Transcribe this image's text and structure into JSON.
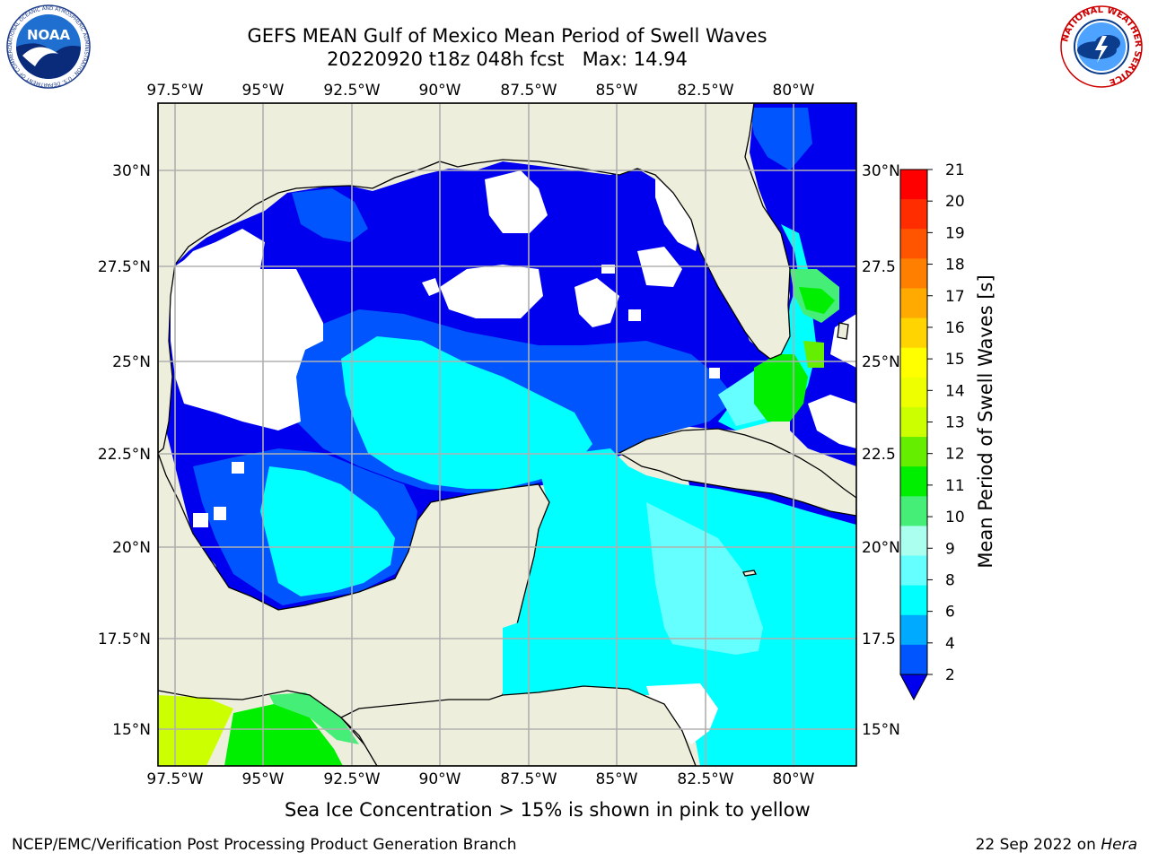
{
  "header": {
    "title_line1": "GEFS MEAN Gulf of Mexico Mean Period of Swell Waves",
    "title_line2": "20220920 t18z 048h fcst   Max: 14.94"
  },
  "logos": {
    "left": {
      "name": "noaa-logo",
      "text": "NOAA",
      "ring_text": "NATIONAL OCEANIC AND ATMOSPHERIC ADMINISTRATION · U.S. DEPARTMENT OF COMMERCE"
    },
    "right": {
      "name": "nws-logo",
      "ring_text": "NATIONAL WEATHER SERVICE"
    }
  },
  "map": {
    "lon_ticks": [
      "97.5°W",
      "95°W",
      "92.5°W",
      "90°W",
      "87.5°W",
      "85°W",
      "82.5°W",
      "80°W"
    ],
    "lat_ticks_left": [
      "30°N",
      "27.5°N",
      "25°N",
      "22.5°N",
      "20°N",
      "17.5°N",
      "15°N"
    ],
    "lat_ticks_right": [
      "30°N",
      "27.5",
      "25°N",
      "22.5",
      "20°N",
      "17.5",
      "15°N"
    ],
    "colors": {
      "land": "#eeeedd",
      "no_data": "#ffffff",
      "grid": "#b0b0b0",
      "coast": "#000000"
    }
  },
  "colorbar": {
    "title": "Mean Period of Swell Waves [s]",
    "labels": [
      "21",
      "20",
      "19",
      "18",
      "17",
      "16",
      "15",
      "14",
      "13",
      "12",
      "11",
      "10",
      "9",
      "8",
      "6",
      "4",
      "2"
    ],
    "extend": "min",
    "colors": [
      "#ff0000",
      "#ff2d00",
      "#ff5500",
      "#ff8000",
      "#ffaa00",
      "#ffd400",
      "#ffff00",
      "#eeff00",
      "#ccff00",
      "#66ee00",
      "#00ee00",
      "#44ee77",
      "#aaffee",
      "#66ffff",
      "#00ffff",
      "#00aaff",
      "#0055ff",
      "#0000ee"
    ]
  },
  "note": "Sea Ice Concentration > 15% is shown in pink to yellow",
  "footer": {
    "left": "NCEP/EMC/Verification Post Processing Product Generation Branch",
    "right_date": "22 Sep 2022 on",
    "right_host": "Hera"
  }
}
